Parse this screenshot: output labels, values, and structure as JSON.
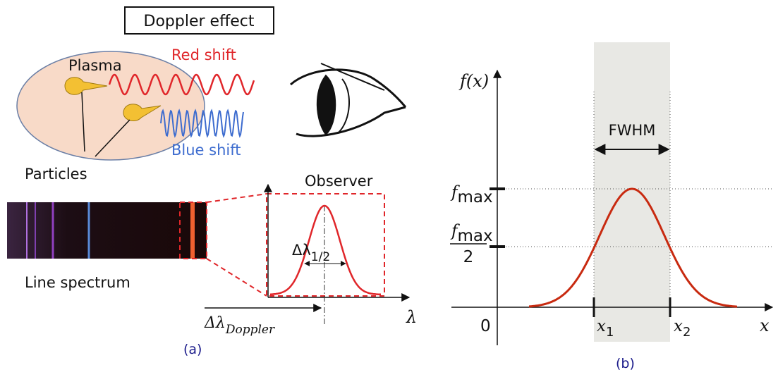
{
  "panel_a": {
    "title": "Doppler effect",
    "plasma": "Plasma",
    "red_shift": "Red shift",
    "blue_shift": "Blue shift",
    "particles": "Particles",
    "observer": "Observer",
    "line_spectrum": "Line spectrum",
    "half_width": {
      "base": "Δλ",
      "sub": "1/2"
    },
    "doppler_shift": {
      "base": "Δλ",
      "sub": "Doppler"
    },
    "axis_label": "λ",
    "caption": "(a)"
  },
  "panel_b": {
    "y_label": "f(x)",
    "fwhm": "FWHM",
    "fmax": {
      "base": "f",
      "sub": "max"
    },
    "fmax_half": {
      "base": "f",
      "sub": "max",
      "denominator": "2"
    },
    "origin": "0",
    "x1": {
      "base": "x",
      "sub": "1"
    },
    "x2": {
      "base": "x",
      "sub": "2"
    },
    "x_label": "x",
    "caption": "(b)"
  }
}
